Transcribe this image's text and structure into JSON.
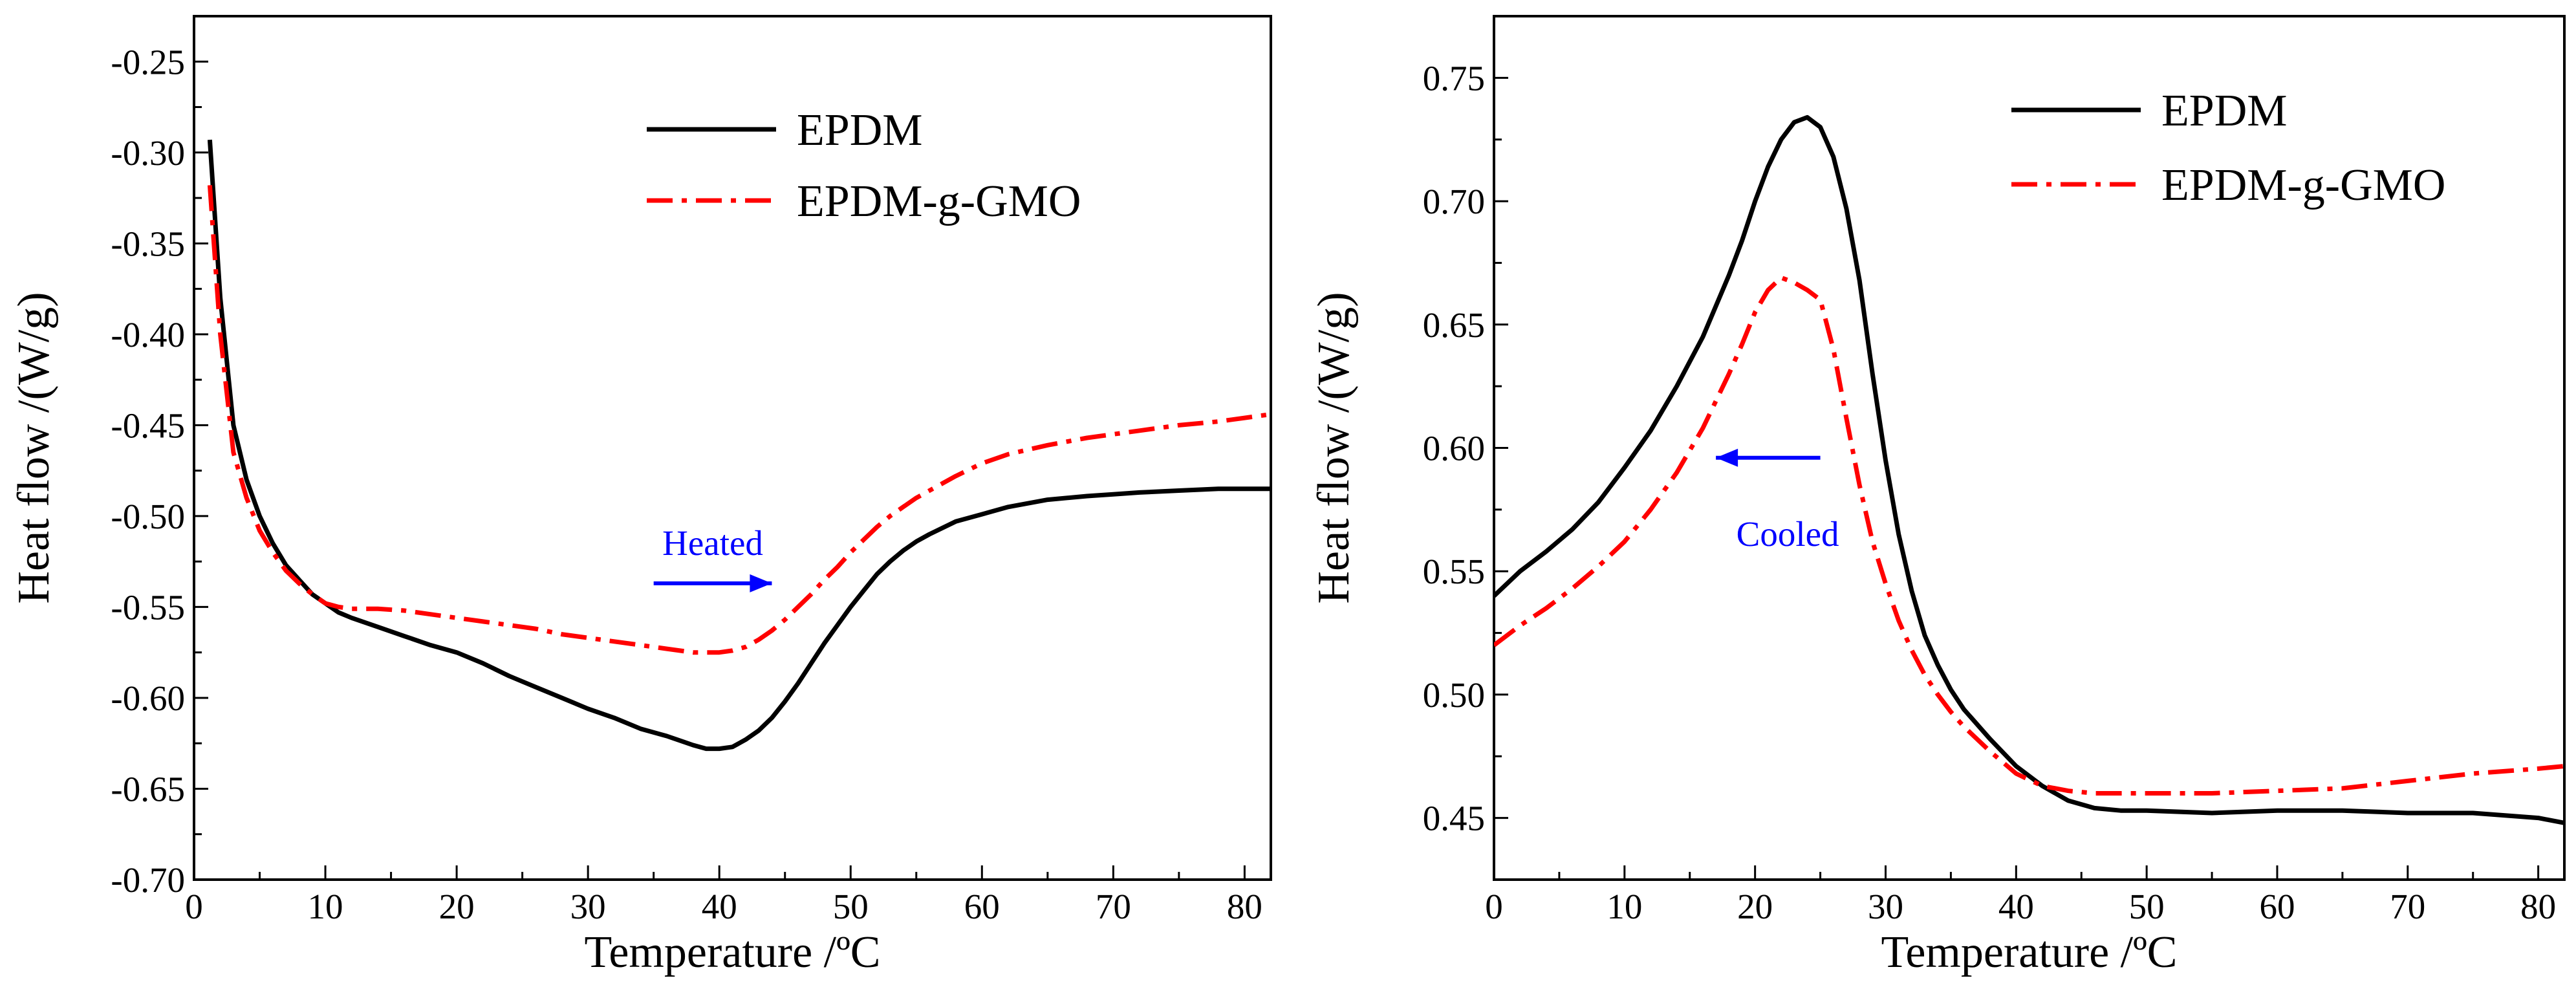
{
  "chart_data": [
    {
      "type": "line",
      "title": "",
      "xlabel": "Temperature /ºC",
      "ylabel": "Heat flow /(W/g)",
      "xlim": [
        0,
        82
      ],
      "ylim": [
        -0.7,
        -0.225
      ],
      "xticks": [
        0,
        10,
        20,
        30,
        40,
        50,
        60,
        70,
        80
      ],
      "xtick_labels": [
        "0",
        "10",
        "20",
        "30",
        "40",
        "50",
        "60",
        "70",
        "80"
      ],
      "yticks": [
        -0.7,
        -0.65,
        -0.6,
        -0.55,
        -0.5,
        -0.45,
        -0.4,
        -0.35,
        -0.3,
        -0.25
      ],
      "ytick_labels": [
        "-0.70",
        "-0.65",
        "-0.60",
        "-0.55",
        "-0.50",
        "-0.45",
        "-0.40",
        "-0.35",
        "-0.30",
        "-0.25"
      ],
      "legend_position": "top-right",
      "annotation": {
        "text": "Heated",
        "arrow_from": [
          35,
          -0.537
        ],
        "arrow_to": [
          44,
          -0.537
        ],
        "text_at": [
          39.5,
          -0.515
        ],
        "color": "#0000ff"
      },
      "series": [
        {
          "name": "EPDM",
          "color": "#000000",
          "style": "solid",
          "x": [
            1.2,
            2,
            3,
            4,
            5,
            6,
            7,
            8,
            9,
            10,
            11,
            12,
            14,
            16,
            18,
            20,
            22,
            24,
            26,
            28,
            30,
            32,
            34,
            36,
            38,
            39,
            40,
            41,
            42,
            43,
            44,
            45,
            46,
            47,
            48,
            49,
            50,
            51,
            52,
            53,
            54,
            55,
            56,
            58,
            60,
            62,
            65,
            68,
            70,
            72,
            75,
            78,
            80,
            82
          ],
          "y": [
            -0.293,
            -0.38,
            -0.45,
            -0.48,
            -0.5,
            -0.515,
            -0.527,
            -0.535,
            -0.543,
            -0.548,
            -0.553,
            -0.556,
            -0.561,
            -0.566,
            -0.571,
            -0.575,
            -0.581,
            -0.588,
            -0.594,
            -0.6,
            -0.606,
            -0.611,
            -0.617,
            -0.621,
            -0.626,
            -0.628,
            -0.628,
            -0.627,
            -0.623,
            -0.618,
            -0.611,
            -0.602,
            -0.592,
            -0.581,
            -0.57,
            -0.56,
            -0.55,
            -0.541,
            -0.532,
            -0.525,
            -0.519,
            -0.514,
            -0.51,
            -0.503,
            -0.499,
            -0.495,
            -0.491,
            -0.489,
            -0.488,
            -0.487,
            -0.486,
            -0.485,
            -0.485,
            -0.485
          ]
        },
        {
          "name": "EPDM-g-GMO",
          "color": "#ff0000",
          "style": "dash-dot",
          "x": [
            1.2,
            2,
            3,
            4,
            5,
            6,
            7,
            8,
            9,
            10,
            11,
            12,
            14,
            16,
            18,
            20,
            22,
            24,
            26,
            28,
            30,
            32,
            34,
            36,
            38,
            39,
            40,
            41,
            42,
            43,
            44,
            45,
            46,
            47,
            48,
            49,
            50,
            51,
            52,
            53,
            54,
            55,
            56,
            58,
            60,
            62,
            65,
            68,
            70,
            72,
            75,
            78,
            80,
            82
          ],
          "y": [
            -0.318,
            -0.4,
            -0.465,
            -0.49,
            -0.508,
            -0.52,
            -0.53,
            -0.537,
            -0.543,
            -0.548,
            -0.55,
            -0.551,
            -0.551,
            -0.552,
            -0.554,
            -0.556,
            -0.558,
            -0.56,
            -0.562,
            -0.565,
            -0.567,
            -0.569,
            -0.571,
            -0.573,
            -0.575,
            -0.575,
            -0.575,
            -0.574,
            -0.572,
            -0.568,
            -0.563,
            -0.557,
            -0.55,
            -0.543,
            -0.535,
            -0.528,
            -0.52,
            -0.513,
            -0.506,
            -0.5,
            -0.495,
            -0.49,
            -0.486,
            -0.478,
            -0.471,
            -0.466,
            -0.461,
            -0.457,
            -0.455,
            -0.453,
            -0.45,
            -0.448,
            -0.446,
            -0.444
          ]
        }
      ]
    },
    {
      "type": "line",
      "title": "",
      "xlabel": "Temperature /ºC",
      "ylabel": "Heat flow /(W/g)",
      "xlim": [
        0,
        82
      ],
      "ylim": [
        0.425,
        0.775
      ],
      "xticks": [
        0,
        10,
        20,
        30,
        40,
        50,
        60,
        70,
        80
      ],
      "xtick_labels": [
        "0",
        "10",
        "20",
        "30",
        "40",
        "50",
        "60",
        "70",
        "80"
      ],
      "yticks": [
        0.45,
        0.5,
        0.55,
        0.6,
        0.65,
        0.7,
        0.75
      ],
      "ytick_labels": [
        "0.45",
        "0.50",
        "0.55",
        "0.60",
        "0.65",
        "0.70",
        "0.75"
      ],
      "legend_position": "top-right",
      "annotation": {
        "text": "Cooled",
        "arrow_from": [
          25,
          0.596
        ],
        "arrow_to": [
          17,
          0.596
        ],
        "text_at": [
          22.5,
          0.565
        ],
        "color": "#0000ff"
      },
      "series": [
        {
          "name": "EPDM",
          "color": "#000000",
          "style": "solid",
          "x": [
            0,
            2,
            4,
            6,
            8,
            10,
            12,
            14,
            16,
            18,
            19,
            20,
            21,
            22,
            23,
            24,
            25,
            26,
            27,
            28,
            29,
            30,
            31,
            32,
            33,
            34,
            35,
            36,
            38,
            40,
            42,
            44,
            46,
            48,
            50,
            55,
            60,
            65,
            70,
            75,
            80,
            82
          ],
          "y": [
            0.54,
            0.55,
            0.558,
            0.567,
            0.578,
            0.592,
            0.607,
            0.625,
            0.645,
            0.67,
            0.684,
            0.7,
            0.714,
            0.725,
            0.732,
            0.734,
            0.73,
            0.718,
            0.697,
            0.668,
            0.63,
            0.595,
            0.565,
            0.542,
            0.524,
            0.512,
            0.502,
            0.494,
            0.482,
            0.471,
            0.463,
            0.457,
            0.454,
            0.453,
            0.453,
            0.452,
            0.453,
            0.453,
            0.452,
            0.452,
            0.45,
            0.448
          ]
        },
        {
          "name": "EPDM-g-GMO",
          "color": "#ff0000",
          "style": "dash-dot",
          "x": [
            0,
            2,
            4,
            6,
            8,
            10,
            12,
            14,
            16,
            18,
            19,
            20,
            21,
            22,
            23,
            24,
            25,
            26,
            27,
            28,
            29,
            30,
            31,
            32,
            33,
            34,
            35,
            36,
            38,
            40,
            42,
            44,
            46,
            48,
            50,
            55,
            60,
            65,
            70,
            75,
            80,
            82
          ],
          "y": [
            0.52,
            0.528,
            0.535,
            0.543,
            0.552,
            0.562,
            0.575,
            0.59,
            0.608,
            0.63,
            0.642,
            0.655,
            0.664,
            0.669,
            0.667,
            0.664,
            0.66,
            0.64,
            0.612,
            0.585,
            0.562,
            0.545,
            0.53,
            0.518,
            0.508,
            0.5,
            0.493,
            0.487,
            0.477,
            0.468,
            0.463,
            0.461,
            0.46,
            0.46,
            0.46,
            0.46,
            0.461,
            0.462,
            0.465,
            0.468,
            0.47,
            0.471
          ]
        }
      ]
    }
  ]
}
